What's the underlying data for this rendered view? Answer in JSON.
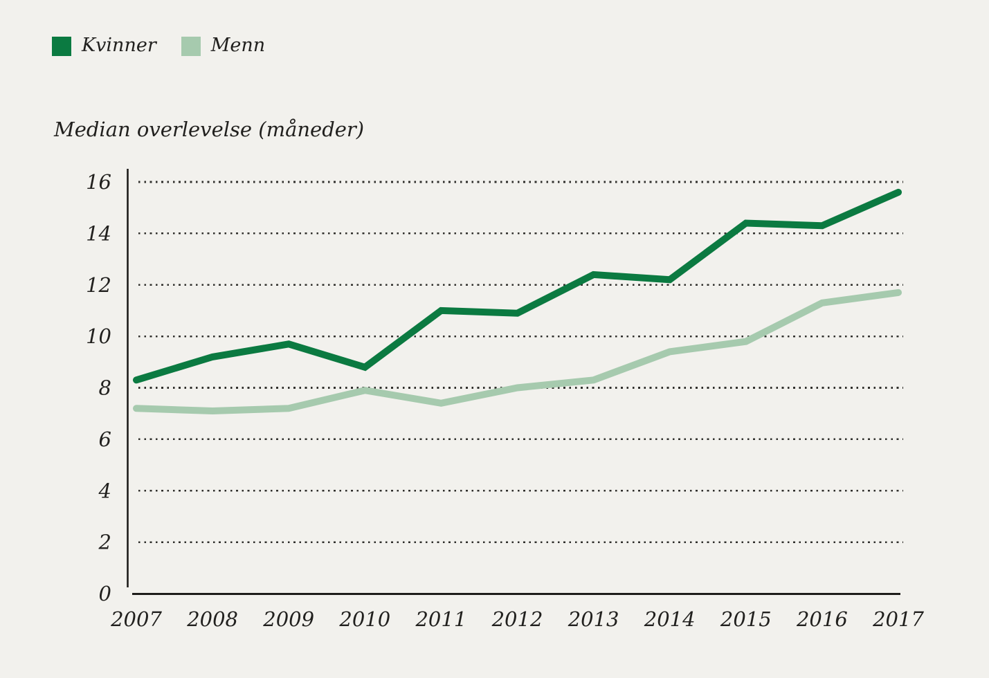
{
  "page": {
    "background_color": "#f2f1ed",
    "text_color": "#21201e",
    "axis_color": "#1d1c1a",
    "gridline_color": "#2f2e2b"
  },
  "legend": {
    "items": [
      {
        "label": "Kvinner",
        "color": "#0b7a41"
      },
      {
        "label": "Menn",
        "color": "#a6caae"
      }
    ]
  },
  "chart_data": {
    "type": "line",
    "title": "Median overlevelse (måneder)",
    "xlabel": "",
    "ylabel": "Median overlevelse (måneder)",
    "x": [
      2007,
      2008,
      2009,
      2010,
      2011,
      2012,
      2013,
      2014,
      2015,
      2016,
      2017
    ],
    "series": [
      {
        "name": "Kvinner",
        "color": "#0b7a41",
        "values": [
          8.3,
          9.2,
          9.7,
          8.8,
          11.0,
          10.9,
          12.4,
          12.2,
          14.4,
          14.3,
          15.6
        ]
      },
      {
        "name": "Menn",
        "color": "#a6caae",
        "values": [
          7.2,
          7.1,
          7.2,
          7.9,
          7.4,
          8.0,
          8.3,
          9.4,
          9.8,
          11.3,
          11.7
        ]
      }
    ],
    "ylim": [
      0,
      16
    ],
    "ytick_step": 2,
    "yticks": [
      0,
      2,
      4,
      6,
      8,
      10,
      12,
      14,
      16
    ],
    "grid": "dotted-horizontal",
    "legend_position": "top-left",
    "line_width": 10
  }
}
